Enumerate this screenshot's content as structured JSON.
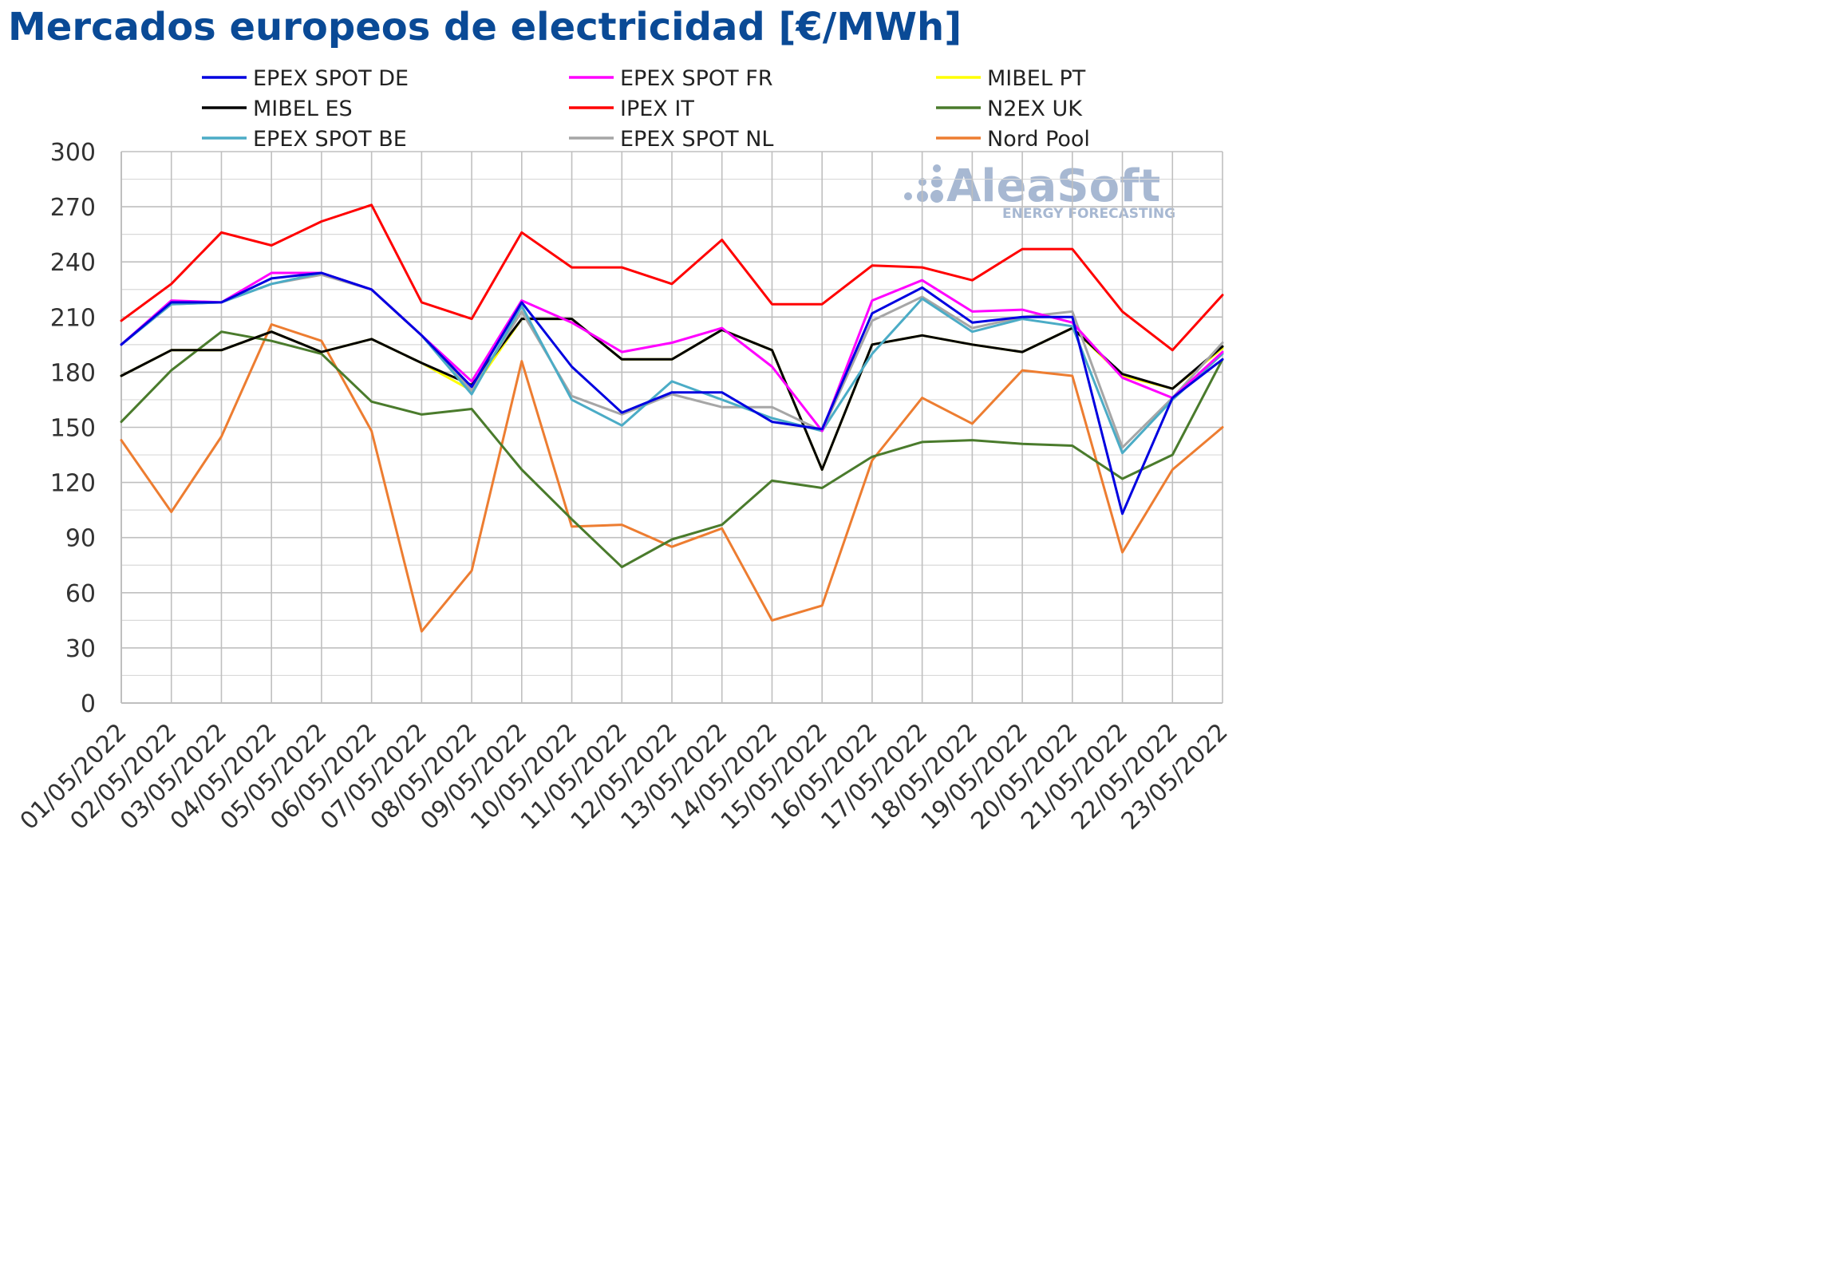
{
  "title": "Mercados europeos de electricidad [€/MWh]",
  "watermark": {
    "brand": "AleaSoft",
    "tagline": "ENERGY FORECASTING",
    "color": "#a7b8d2"
  },
  "chart_data": {
    "type": "line",
    "title": "Mercados europeos de electricidad [€/MWh]",
    "xlabel": "",
    "ylabel": "",
    "ylim": [
      0,
      300
    ],
    "yticks": [
      0,
      30,
      60,
      90,
      120,
      150,
      180,
      210,
      240,
      270,
      300
    ],
    "grid": true,
    "legend_position": "top",
    "categories": [
      "01/05/2022",
      "02/05/2022",
      "03/05/2022",
      "04/05/2022",
      "05/05/2022",
      "06/05/2022",
      "07/05/2022",
      "08/05/2022",
      "09/05/2022",
      "10/05/2022",
      "11/05/2022",
      "12/05/2022",
      "13/05/2022",
      "14/05/2022",
      "15/05/2022",
      "16/05/2022",
      "17/05/2022",
      "18/05/2022",
      "19/05/2022",
      "20/05/2022",
      "21/05/2022",
      "22/05/2022",
      "23/05/2022"
    ],
    "series": [
      {
        "name": "EPEX SPOT DE",
        "color": "#0000e0",
        "values": [
          195,
          218,
          218,
          231,
          234,
          225,
          200,
          172,
          218,
          183,
          158,
          169,
          169,
          153,
          149,
          212,
          226,
          207,
          210,
          210,
          103,
          166,
          187
        ]
      },
      {
        "name": "EPEX SPOT FR",
        "color": "#ff00ff",
        "values": [
          195,
          219,
          218,
          234,
          234,
          225,
          200,
          175,
          219,
          207,
          191,
          196,
          204,
          183,
          148,
          219,
          230,
          213,
          214,
          207,
          177,
          166,
          191
        ]
      },
      {
        "name": "MIBEL PT",
        "color": "#ffff00",
        "values": [
          178,
          192,
          192,
          202,
          191,
          198,
          185,
          170,
          209,
          209,
          187,
          187,
          203,
          192,
          127,
          195,
          200,
          195,
          191,
          204,
          178,
          171,
          193
        ]
      },
      {
        "name": "MIBEL ES",
        "color": "#000000",
        "values": [
          178,
          192,
          192,
          202,
          191,
          198,
          185,
          173,
          209,
          209,
          187,
          187,
          203,
          192,
          127,
          195,
          200,
          195,
          191,
          204,
          179,
          171,
          194
        ]
      },
      {
        "name": "IPEX IT",
        "color": "#ff0000",
        "values": [
          208,
          228,
          256,
          249,
          262,
          271,
          218,
          209,
          256,
          237,
          237,
          228,
          252,
          217,
          217,
          238,
          237,
          230,
          247,
          247,
          213,
          192,
          222
        ]
      },
      {
        "name": "N2EX UK",
        "color": "#4a7b2c",
        "values": [
          153,
          181,
          202,
          197,
          190,
          164,
          157,
          160,
          127,
          100,
          74,
          89,
          97,
          121,
          117,
          134,
          142,
          143,
          141,
          140,
          122,
          135,
          187
        ]
      },
      {
        "name": "EPEX SPOT BE",
        "color": "#4bacc6",
        "values": [
          195,
          217,
          218,
          228,
          234,
          225,
          200,
          168,
          216,
          165,
          151,
          175,
          165,
          155,
          148,
          190,
          220,
          202,
          209,
          205,
          136,
          165,
          190
        ]
      },
      {
        "name": "EPEX SPOT NL",
        "color": "#a6a6a6",
        "values": [
          195,
          217,
          218,
          228,
          233,
          225,
          200,
          170,
          213,
          167,
          157,
          168,
          161,
          161,
          148,
          208,
          221,
          204,
          210,
          213,
          139,
          166,
          196
        ]
      },
      {
        "name": "Nord Pool",
        "color": "#ed7d31",
        "values": [
          143,
          104,
          145,
          206,
          197,
          148,
          39,
          72,
          186,
          96,
          97,
          85,
          95,
          45,
          53,
          132,
          166,
          152,
          181,
          178,
          82,
          127,
          150
        ]
      }
    ]
  }
}
